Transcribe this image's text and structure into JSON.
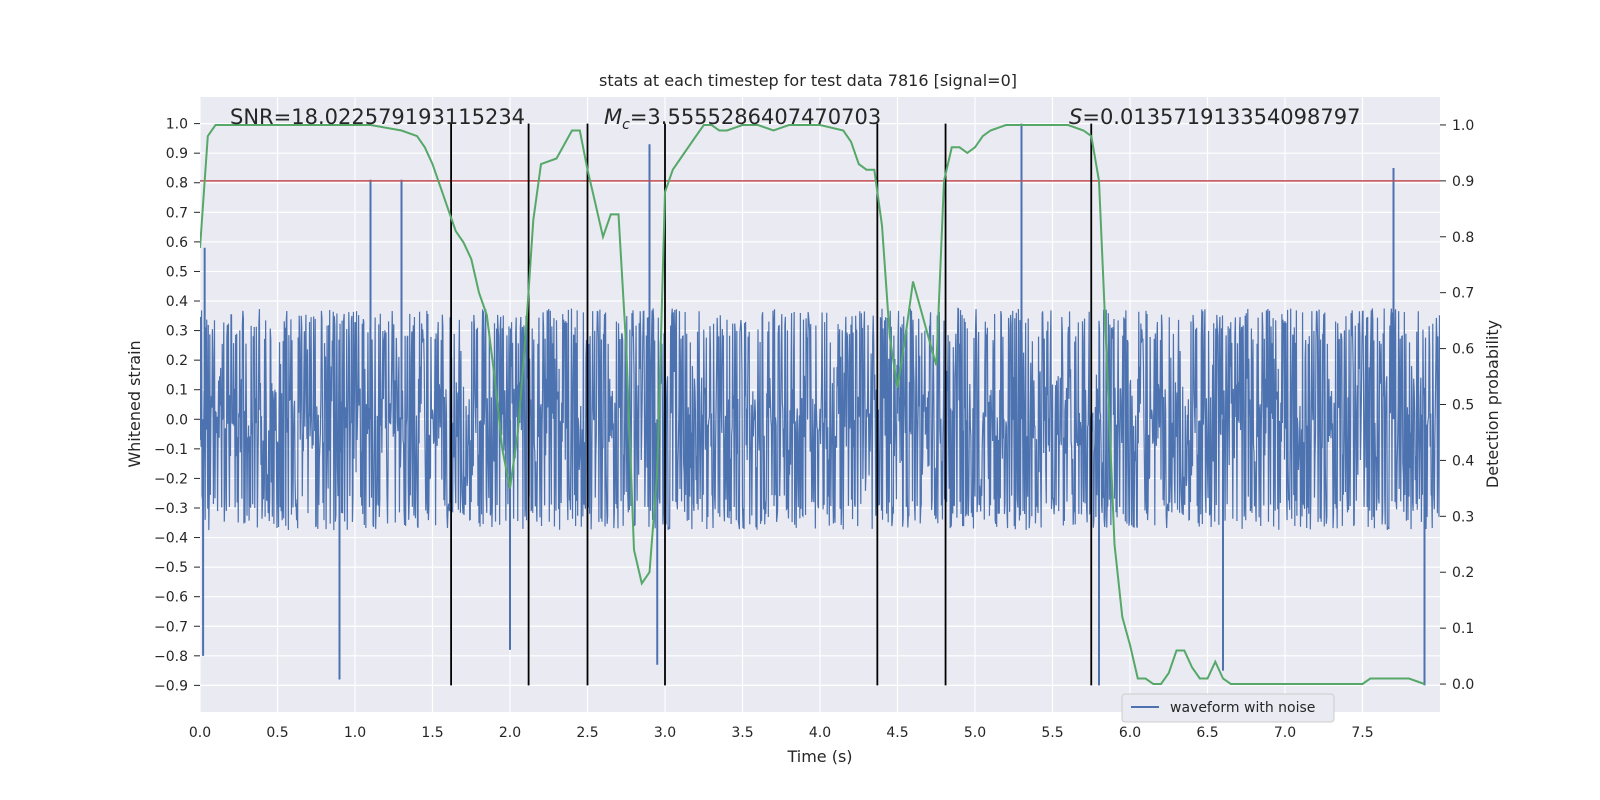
{
  "chart_data": {
    "type": "line",
    "title": "stats at each timestep for test data 7816 [signal=0]",
    "xlabel": "Time (s)",
    "ylabel": "Whitened strain",
    "y2label": "Detection probability",
    "xlim": [
      0.0,
      8.0
    ],
    "ylim": [
      -0.99,
      1.09
    ],
    "y2lim": [
      -0.05,
      1.05
    ],
    "xticks": [
      "0.0",
      "0.5",
      "1.0",
      "1.5",
      "2.0",
      "2.5",
      "3.0",
      "3.5",
      "4.0",
      "4.5",
      "5.0",
      "5.5",
      "6.0",
      "6.5",
      "7.0",
      "7.5"
    ],
    "yticks": [
      "1.0",
      "0.9",
      "0.8",
      "0.7",
      "0.6",
      "0.5",
      "0.4",
      "0.3",
      "0.2",
      "0.1",
      "0.0",
      "-0.1",
      "-0.2",
      "-0.3",
      "-0.4",
      "-0.5",
      "-0.6",
      "-0.7",
      "-0.8",
      "-0.9"
    ],
    "y2ticks": [
      "1.0",
      "0.9",
      "0.8",
      "0.7",
      "0.6",
      "0.5",
      "0.4",
      "0.3",
      "0.2",
      "0.1",
      "0.0"
    ],
    "grid": true,
    "legend_position": "lower-right",
    "annotations": [
      {
        "text": "SNR=18.022579193115234",
        "x": 0.2
      },
      {
        "text": "Mc=3.5555286407470703",
        "x": 2.6
      },
      {
        "text": "S=0.013571913354098797",
        "x": 5.6
      }
    ],
    "annotation_parts": {
      "mc_symbol": "M",
      "mc_sub": "c",
      "mc_value": "=3.5555286407470703",
      "s_symbol": "S",
      "s_value": "=0.013571913354098797"
    },
    "threshold": {
      "y2": 0.9,
      "color": "#c44e52"
    },
    "vlines_x": [
      1.62,
      2.12,
      2.5,
      3.0,
      4.37,
      4.81,
      5.75
    ],
    "series": [
      {
        "name": "waveform with noise",
        "color": "#4c72b0",
        "kind": "noise-waveform",
        "envelope_core": 0.3,
        "max_positive": 1.0,
        "min_negative": -0.9,
        "notable_peaks": [
          {
            "x": 0.03,
            "y": 0.58
          },
          {
            "x": 1.1,
            "y": 0.81
          },
          {
            "x": 1.3,
            "y": 0.81
          },
          {
            "x": 2.9,
            "y": 0.93
          },
          {
            "x": 5.3,
            "y": 1.0
          },
          {
            "x": 7.7,
            "y": 0.85
          },
          {
            "x": 0.02,
            "y": -0.8
          },
          {
            "x": 0.9,
            "y": -0.88
          },
          {
            "x": 2.0,
            "y": -0.78
          },
          {
            "x": 2.95,
            "y": -0.83
          },
          {
            "x": 5.8,
            "y": -0.9
          },
          {
            "x": 6.6,
            "y": -0.85
          },
          {
            "x": 7.9,
            "y": -0.9
          }
        ]
      },
      {
        "name": "",
        "axis": "y2",
        "color": "#55a868",
        "x": [
          0.0,
          0.05,
          0.1,
          0.2,
          0.3,
          0.5,
          0.7,
          0.9,
          1.1,
          1.3,
          1.4,
          1.45,
          1.5,
          1.55,
          1.6,
          1.65,
          1.7,
          1.75,
          1.8,
          1.85,
          1.9,
          1.95,
          2.0,
          2.05,
          2.1,
          2.15,
          2.2,
          2.3,
          2.4,
          2.45,
          2.5,
          2.55,
          2.6,
          2.65,
          2.7,
          2.75,
          2.8,
          2.85,
          2.9,
          2.95,
          3.0,
          3.05,
          3.1,
          3.2,
          3.25,
          3.3,
          3.35,
          3.4,
          3.5,
          3.6,
          3.7,
          3.8,
          3.9,
          4.0,
          4.15,
          4.2,
          4.25,
          4.3,
          4.35,
          4.4,
          4.45,
          4.5,
          4.55,
          4.6,
          4.65,
          4.7,
          4.75,
          4.8,
          4.85,
          4.9,
          4.95,
          5.0,
          5.05,
          5.1,
          5.2,
          5.3,
          5.4,
          5.5,
          5.6,
          5.7,
          5.75,
          5.8,
          5.85,
          5.9,
          5.95,
          6.0,
          6.05,
          6.1,
          6.15,
          6.2,
          6.25,
          6.3,
          6.35,
          6.4,
          6.45,
          6.5,
          6.55,
          6.6,
          6.65,
          6.7,
          6.8,
          6.9,
          7.0,
          7.1,
          7.2,
          7.3,
          7.4,
          7.5,
          7.55,
          7.6,
          7.65,
          7.7,
          7.8,
          7.9
        ],
        "y": [
          0.78,
          0.98,
          1.0,
          1.0,
          1.0,
          1.0,
          1.0,
          1.0,
          1.0,
          0.99,
          0.98,
          0.96,
          0.93,
          0.89,
          0.85,
          0.81,
          0.79,
          0.76,
          0.7,
          0.66,
          0.55,
          0.42,
          0.35,
          0.45,
          0.62,
          0.83,
          0.93,
          0.94,
          0.99,
          0.99,
          0.92,
          0.86,
          0.8,
          0.84,
          0.84,
          0.6,
          0.24,
          0.18,
          0.2,
          0.38,
          0.88,
          0.92,
          0.94,
          0.98,
          1.0,
          1.0,
          0.99,
          0.99,
          1.0,
          1.0,
          0.99,
          1.0,
          1.0,
          1.0,
          0.99,
          0.97,
          0.93,
          0.92,
          0.92,
          0.82,
          0.62,
          0.53,
          0.62,
          0.72,
          0.67,
          0.62,
          0.57,
          0.9,
          0.96,
          0.96,
          0.95,
          0.96,
          0.98,
          0.99,
          1.0,
          1.0,
          1.0,
          1.0,
          1.0,
          0.99,
          0.98,
          0.9,
          0.58,
          0.25,
          0.12,
          0.07,
          0.01,
          0.01,
          0.0,
          0.0,
          0.02,
          0.06,
          0.06,
          0.03,
          0.01,
          0.01,
          0.04,
          0.01,
          0.0,
          0.0,
          0.0,
          0.0,
          0.0,
          0.0,
          0.0,
          0.0,
          0.0,
          0.0,
          0.01,
          0.01,
          0.01,
          0.01,
          0.01,
          0.0
        ]
      }
    ]
  }
}
